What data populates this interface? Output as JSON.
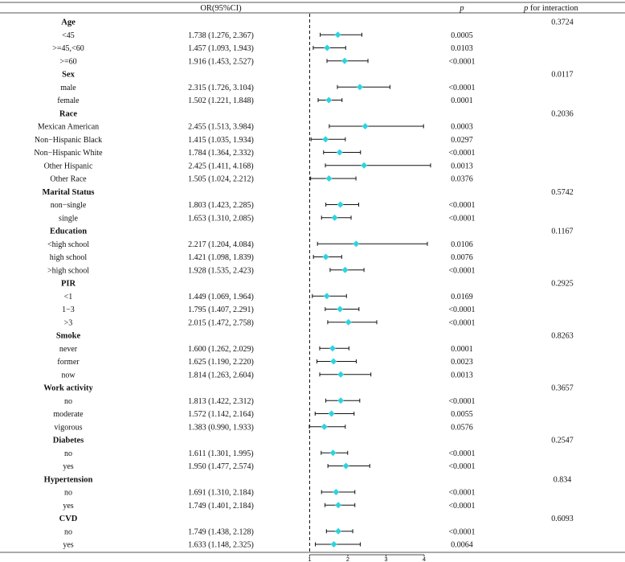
{
  "chart_data": {
    "type": "forest",
    "headers": {
      "or": "OR(95%CI)",
      "p": "p",
      "p_interaction_prefix": "p",
      "p_interaction_suffix": " for interaction"
    },
    "x_ticks": [
      "1",
      "2",
      "3",
      "4"
    ],
    "reference_line": 1,
    "xlim": [
      1,
      4
    ],
    "groups": [
      {
        "name": "Age",
        "p_interaction": "0.3724",
        "rows": [
          {
            "label": "<45",
            "or_text": "1.738 (1.276, 2.367)",
            "or": 1.738,
            "lo": 1.276,
            "hi": 2.367,
            "p": "0.0005"
          },
          {
            "label": ">=45,<60",
            "or_text": "1.457 (1.093, 1.943)",
            "or": 1.457,
            "lo": 1.093,
            "hi": 1.943,
            "p": "0.0103"
          },
          {
            "label": ">=60",
            "or_text": "1.916 (1.453, 2.527)",
            "or": 1.916,
            "lo": 1.453,
            "hi": 2.527,
            "p": "<0.0001"
          }
        ]
      },
      {
        "name": "Sex",
        "p_interaction": "0.0117",
        "rows": [
          {
            "label": "male",
            "or_text": "2.315 (1.726, 3.104)",
            "or": 2.315,
            "lo": 1.726,
            "hi": 3.104,
            "p": "<0.0001"
          },
          {
            "label": "female",
            "or_text": "1.502 (1.221, 1.848)",
            "or": 1.502,
            "lo": 1.221,
            "hi": 1.848,
            "p": "0.0001"
          }
        ]
      },
      {
        "name": "Race",
        "p_interaction": "0.2036",
        "rows": [
          {
            "label": "Mexican American",
            "or_text": "2.455 (1.513, 3.984)",
            "or": 2.455,
            "lo": 1.513,
            "hi": 3.984,
            "p": "0.0003"
          },
          {
            "label": "Non−Hispanic Black",
            "or_text": "1.415 (1.035, 1.934)",
            "or": 1.415,
            "lo": 1.035,
            "hi": 1.934,
            "p": "0.0297"
          },
          {
            "label": "Non−Hispanic White",
            "or_text": "1.784 (1.364, 2.332)",
            "or": 1.784,
            "lo": 1.364,
            "hi": 2.332,
            "p": "<0.0001"
          },
          {
            "label": "Other Hispanic",
            "or_text": "2.425 (1.411, 4.168)",
            "or": 2.425,
            "lo": 1.411,
            "hi": 4.168,
            "p": "0.0013"
          },
          {
            "label": "Other Race",
            "or_text": "1.505 (1.024, 2.212)",
            "or": 1.505,
            "lo": 1.024,
            "hi": 2.212,
            "p": "0.0376"
          }
        ]
      },
      {
        "name": "Marital Status",
        "p_interaction": "0.5742",
        "rows": [
          {
            "label": "non−single",
            "or_text": "1.803 (1.423, 2.285)",
            "or": 1.803,
            "lo": 1.423,
            "hi": 2.285,
            "p": "<0.0001"
          },
          {
            "label": "single",
            "or_text": "1.653 (1.310, 2.085)",
            "or": 1.653,
            "lo": 1.31,
            "hi": 2.085,
            "p": "<0.0001"
          }
        ]
      },
      {
        "name": "Education",
        "p_interaction": "0.1167",
        "rows": [
          {
            "label": "<high school",
            "or_text": "2.217 (1.204, 4.084)",
            "or": 2.217,
            "lo": 1.204,
            "hi": 4.084,
            "p": "0.0106"
          },
          {
            "label": "high school",
            "or_text": "1.421 (1.098, 1.839)",
            "or": 1.421,
            "lo": 1.098,
            "hi": 1.839,
            "p": "0.0076"
          },
          {
            "label": ">high school",
            "or_text": "1.928 (1.535, 2.423)",
            "or": 1.928,
            "lo": 1.535,
            "hi": 2.423,
            "p": "<0.0001"
          }
        ]
      },
      {
        "name": "PIR",
        "p_interaction": "0.2925",
        "rows": [
          {
            "label": "<1",
            "or_text": "1.449 (1.069, 1.964)",
            "or": 1.449,
            "lo": 1.069,
            "hi": 1.964,
            "p": "0.0169"
          },
          {
            "label": "1−3",
            "or_text": "1.795 (1.407, 2.291)",
            "or": 1.795,
            "lo": 1.407,
            "hi": 2.291,
            "p": "<0.0001"
          },
          {
            "label": ">3",
            "or_text": "2.015 (1.472, 2.758)",
            "or": 2.015,
            "lo": 1.472,
            "hi": 2.758,
            "p": "<0.0001"
          }
        ]
      },
      {
        "name": "Smoke",
        "p_interaction": "0.8263",
        "rows": [
          {
            "label": "never",
            "or_text": "1.600 (1.262, 2.029)",
            "or": 1.6,
            "lo": 1.262,
            "hi": 2.029,
            "p": "0.0001"
          },
          {
            "label": "former",
            "or_text": "1.625 (1.190, 2.220)",
            "or": 1.625,
            "lo": 1.19,
            "hi": 2.22,
            "p": "0.0023"
          },
          {
            "label": "now",
            "or_text": "1.814 (1.263, 2.604)",
            "or": 1.814,
            "lo": 1.263,
            "hi": 2.604,
            "p": "0.0013"
          }
        ]
      },
      {
        "name": "Work activity",
        "p_interaction": "0.3657",
        "rows": [
          {
            "label": "no",
            "or_text": "1.813 (1.422, 2.312)",
            "or": 1.813,
            "lo": 1.422,
            "hi": 2.312,
            "p": "<0.0001"
          },
          {
            "label": "moderate",
            "or_text": "1.572 (1.142, 2.164)",
            "or": 1.572,
            "lo": 1.142,
            "hi": 2.164,
            "p": "0.0055"
          },
          {
            "label": "vigorous",
            "or_text": "1.383 (0.990, 1.933)",
            "or": 1.383,
            "lo": 0.99,
            "hi": 1.933,
            "p": "0.0576"
          }
        ]
      },
      {
        "name": "Diabetes",
        "p_interaction": "0.2547",
        "rows": [
          {
            "label": "no",
            "or_text": "1.611 (1.301, 1.995)",
            "or": 1.611,
            "lo": 1.301,
            "hi": 1.995,
            "p": "<0.0001"
          },
          {
            "label": "yes",
            "or_text": "1.950 (1.477, 2.574)",
            "or": 1.95,
            "lo": 1.477,
            "hi": 2.574,
            "p": "<0.0001"
          }
        ]
      },
      {
        "name": "Hypertension",
        "p_interaction": "0.834",
        "rows": [
          {
            "label": "no",
            "or_text": "1.691 (1.310, 2.184)",
            "or": 1.691,
            "lo": 1.31,
            "hi": 2.184,
            "p": "<0.0001"
          },
          {
            "label": "yes",
            "or_text": "1.749 (1.401, 2.184)",
            "or": 1.749,
            "lo": 1.401,
            "hi": 2.184,
            "p": "<0.0001"
          }
        ]
      },
      {
        "name": "CVD",
        "p_interaction": "0.6093",
        "rows": [
          {
            "label": "no",
            "or_text": "1.749 (1.438, 2.128)",
            "or": 1.749,
            "lo": 1.438,
            "hi": 2.128,
            "p": "<0.0001"
          },
          {
            "label": "yes",
            "or_text": "1.633 (1.148, 2.325)",
            "or": 1.633,
            "lo": 1.148,
            "hi": 2.325,
            "p": "0.0064"
          }
        ]
      }
    ],
    "colors": {
      "marker": "#2ed3df",
      "line": "#111111",
      "rule": "#555555"
    }
  }
}
